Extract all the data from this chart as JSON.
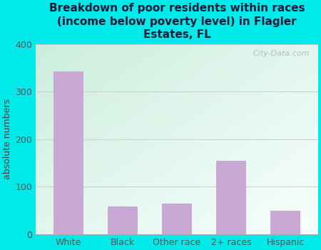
{
  "title": "Breakdown of poor residents within races\n(income below poverty level) in Flagler\nEstates, FL",
  "categories": [
    "White",
    "Black",
    "Other race",
    "2+ races",
    "Hispanic"
  ],
  "values": [
    342,
    58,
    65,
    155,
    50
  ],
  "bar_color": "#c9a8d4",
  "ylabel": "absolute numbers",
  "ylim": [
    0,
    400
  ],
  "yticks": [
    0,
    100,
    200,
    300,
    400
  ],
  "bg_outer": "#00eaea",
  "bg_top_left": "#d6f0dc",
  "bg_top_right": "#f0faf8",
  "bg_bottom_left": "#cceedd",
  "bg_bottom_right": "#ffffff",
  "grid_color": "#cccccc",
  "title_color": "#1a1a3a",
  "watermark": "City-Data.com",
  "tick_color": "#555555",
  "label_color": "#444444"
}
